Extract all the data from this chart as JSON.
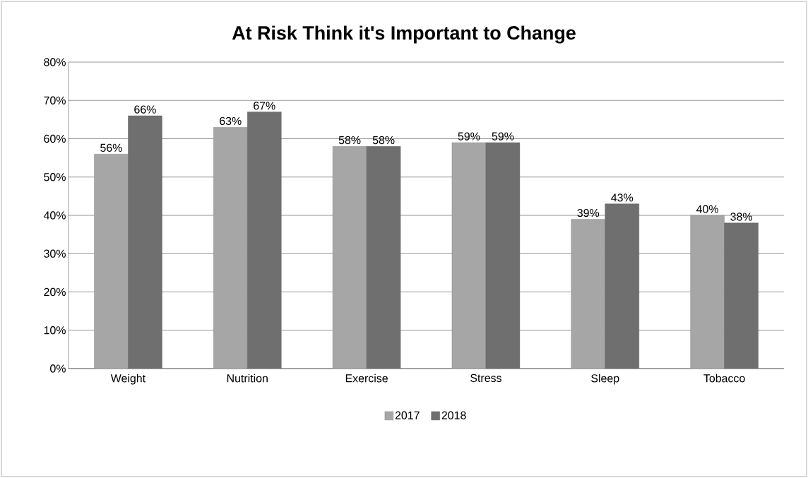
{
  "chart_data": {
    "type": "bar",
    "title": "At Risk Think it's Important to Change",
    "categories": [
      "Weight",
      "Nutrition",
      "Exercise",
      "Stress",
      "Sleep",
      "Tobacco"
    ],
    "series": [
      {
        "name": "2017",
        "color": "#a6a6a6",
        "values": [
          56,
          63,
          58,
          59,
          39,
          40
        ],
        "value_labels": [
          "56%",
          "63%",
          "58%",
          "59%",
          "39%",
          "40%"
        ]
      },
      {
        "name": "2018",
        "color": "#6f6f6f",
        "values": [
          66,
          67,
          58,
          59,
          43,
          38
        ],
        "value_labels": [
          "66%",
          "67%",
          "58%",
          "59%",
          "43%",
          "38%"
        ]
      }
    ],
    "ylim": [
      0,
      80
    ],
    "yticks": [
      {
        "value": 0,
        "label": "0%"
      },
      {
        "value": 10,
        "label": "10%"
      },
      {
        "value": 20,
        "label": "20%"
      },
      {
        "value": 30,
        "label": "30%"
      },
      {
        "value": 40,
        "label": "40%"
      },
      {
        "value": 50,
        "label": "50%"
      },
      {
        "value": 60,
        "label": "60%"
      },
      {
        "value": 70,
        "label": "70%"
      },
      {
        "value": 80,
        "label": "80%"
      }
    ],
    "grid": "y",
    "legend": "bottom"
  }
}
